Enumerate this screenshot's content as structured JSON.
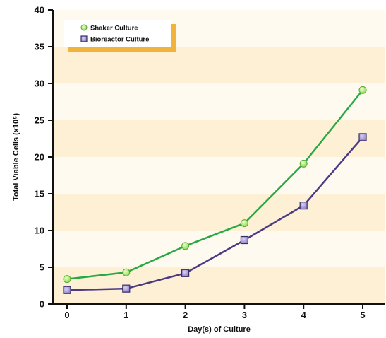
{
  "chart_data": {
    "type": "line",
    "x": [
      0,
      1,
      2,
      3,
      4,
      5
    ],
    "xticks": [
      "0",
      "1",
      "2",
      "3",
      "4",
      "5"
    ],
    "yticks": [
      "0",
      "5",
      "10",
      "15",
      "20",
      "25",
      "30",
      "35",
      "40"
    ],
    "xlabel": "Day(s) of Culture",
    "ylabel": "Total Viable Cells (x10⁵)",
    "ylim": [
      0,
      40
    ],
    "grid": "alternating horizontal bands",
    "legend_position": "top-left",
    "series": [
      {
        "name": "Shaker Culture",
        "values": [
          3.4,
          4.3,
          7.9,
          11.0,
          19.1,
          29.1
        ],
        "color": "#27a844",
        "marker": "circle",
        "marker_color": "#8fdc5a"
      },
      {
        "name": "Bioreactor Culture",
        "values": [
          1.9,
          2.1,
          4.2,
          8.7,
          13.4,
          22.7
        ],
        "color": "#4b3a84",
        "marker": "square",
        "marker_color": "#8a7fc6"
      }
    ],
    "band_color": "#fdf0d5",
    "legend_shadow_color": "#f0b43c"
  }
}
